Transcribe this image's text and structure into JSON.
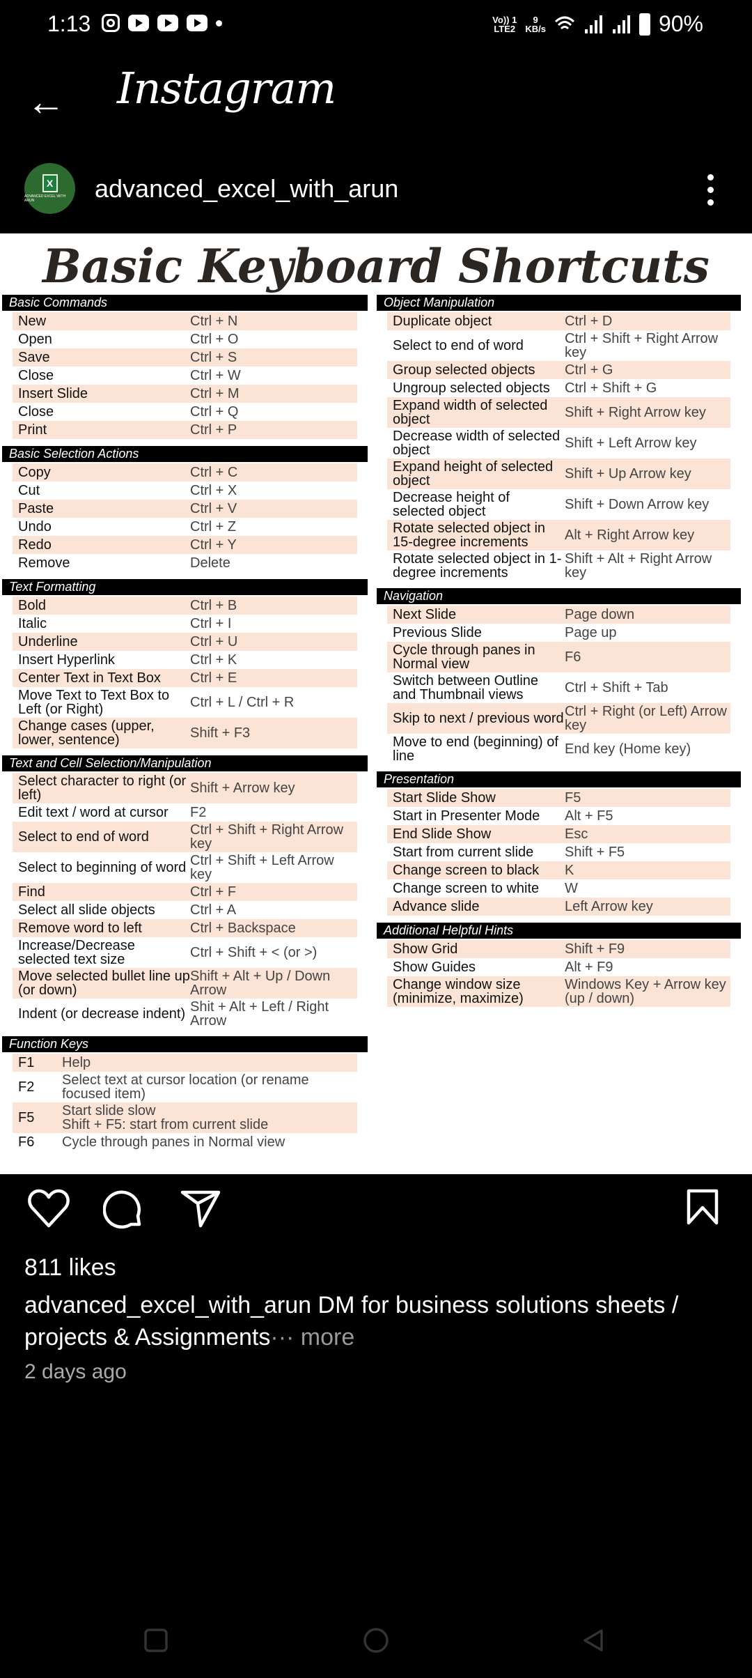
{
  "status": {
    "time": "1:13",
    "net1": "Vo)) 1",
    "net2": "LTE2",
    "speed1": "9",
    "speed2": "KB/s",
    "battery": "90%"
  },
  "header": {
    "app_title": "Instagram",
    "username": "advanced_excel_with_arun",
    "avatar_text": "ADVANCED EXCEL WITH ARUN"
  },
  "post_image": {
    "title": "Basic Keyboard Shortcuts",
    "left": [
      {
        "title": "Basic Commands",
        "rows": [
          [
            "New",
            "Ctrl + N"
          ],
          [
            "Open",
            "Ctrl + O"
          ],
          [
            "Save",
            "Ctrl + S"
          ],
          [
            "Close",
            "Ctrl + W"
          ],
          [
            "Insert Slide",
            "Ctrl + M"
          ],
          [
            "Close",
            "Ctrl + Q"
          ],
          [
            "Print",
            "Ctrl + P"
          ]
        ]
      },
      {
        "title": "Basic Selection Actions",
        "rows": [
          [
            "Copy",
            "Ctrl + C"
          ],
          [
            "Cut",
            "Ctrl + X"
          ],
          [
            "Paste",
            "Ctrl + V"
          ],
          [
            "Undo",
            "Ctrl + Z"
          ],
          [
            "Redo",
            "Ctrl + Y"
          ],
          [
            "Remove",
            "Delete"
          ]
        ]
      },
      {
        "title": "Text Formatting",
        "rows": [
          [
            "Bold",
            "Ctrl + B"
          ],
          [
            "Italic",
            "Ctrl + I"
          ],
          [
            "Underline",
            "Ctrl + U"
          ],
          [
            "Insert Hyperlink",
            "Ctrl + K"
          ],
          [
            "Center Text in Text Box",
            "Ctrl + E"
          ],
          [
            "Move Text to Text Box to Left (or Right)",
            "Ctrl + L / Ctrl + R"
          ],
          [
            "Change cases (upper, lower, sentence)",
            "Shift + F3"
          ]
        ]
      },
      {
        "title": "Text and Cell Selection/Manipulation",
        "rows": [
          [
            "Select character to right (or left)",
            "Shift + Arrow key"
          ],
          [
            "Edit text / word at cursor",
            "F2"
          ],
          [
            "Select to end of word",
            "Ctrl + Shift + Right Arrow key"
          ],
          [
            "Select to beginning of word",
            "Ctrl + Shift + Left Arrow key"
          ],
          [
            "Find",
            "Ctrl + F"
          ],
          [
            "Select all slide objects",
            "Ctrl + A"
          ],
          [
            "Remove word to left",
            "Ctrl + Backspace"
          ],
          [
            "Increase/Decrease selected text size",
            "Ctrl + Shift + < (or >)"
          ],
          [
            "Move selected bullet line up (or down)",
            "Shift + Alt + Up / Down Arrow"
          ],
          [
            "Indent (or decrease indent)",
            "Shit + Alt + Left / Right Arrow"
          ]
        ]
      },
      {
        "title": "Function Keys",
        "fk": true,
        "rows": [
          [
            "F1",
            "Help"
          ],
          [
            "F2",
            "Select text at cursor location (or rename focused item)"
          ],
          [
            "F5",
            "Start slide slow\nShift + F5: start from current slide"
          ],
          [
            "F6",
            "Cycle through panes in Normal view"
          ]
        ]
      }
    ],
    "right": [
      {
        "title": "Object Manipulation",
        "rows": [
          [
            "Duplicate object",
            "Ctrl + D"
          ],
          [
            "Select to end of word",
            "Ctrl + Shift + Right Arrow key"
          ],
          [
            "Group selected objects",
            "Ctrl + G"
          ],
          [
            "Ungroup selected objects",
            "Ctrl + Shift + G"
          ],
          [
            "Expand width of selected object",
            "Shift + Right Arrow key"
          ],
          [
            "Decrease width of selected object",
            "Shift + Left Arrow key"
          ],
          [
            "Expand height of selected object",
            "Shift + Up Arrow key"
          ],
          [
            "Decrease height of selected object",
            "Shift + Down Arrow key"
          ],
          [
            "Rotate selected object in 15-degree increments",
            "Alt + Right Arrow key"
          ],
          [
            "Rotate selected object in 1-degree increments",
            "Shift + Alt + Right Arrow key"
          ]
        ]
      },
      {
        "title": "Navigation",
        "rows": [
          [
            "Next Slide",
            "Page down"
          ],
          [
            "Previous Slide",
            "Page up"
          ],
          [
            "Cycle through panes in Normal view",
            "F6"
          ],
          [
            "Switch between Outline and Thumbnail views",
            "Ctrl + Shift + Tab"
          ],
          [
            "Skip to next / previous word",
            "Ctrl + Right (or Left) Arrow key"
          ],
          [
            "Move to end (beginning) of line",
            "End key (Home key)"
          ]
        ]
      },
      {
        "title": "Presentation",
        "rows": [
          [
            "Start Slide Show",
            "F5"
          ],
          [
            "Start in Presenter Mode",
            "Alt + F5"
          ],
          [
            "End Slide Show",
            "Esc"
          ],
          [
            "Start from current slide",
            "Shift + F5"
          ],
          [
            "Change screen to black",
            "K"
          ],
          [
            "Change screen to white",
            "W"
          ],
          [
            "Advance slide",
            "Left Arrow key"
          ]
        ]
      },
      {
        "title": "Additional Helpful Hints",
        "rows": [
          [
            "Show Grid",
            "Shift + F9"
          ],
          [
            "Show Guides",
            "Alt + F9"
          ],
          [
            "Change window size (minimize, maximize)",
            "Windows Key + Arrow key (up / down)"
          ]
        ]
      }
    ]
  },
  "footer": {
    "likes": "811 likes",
    "caption_user": "advanced_excel_with_arun",
    "caption_text": " DM for business solutions sheets / projects & Assignments",
    "more": "··· more",
    "time_ago": "2 days ago"
  },
  "colors": {
    "stripe": "#fbe4d6",
    "header_bg": "#000000"
  }
}
